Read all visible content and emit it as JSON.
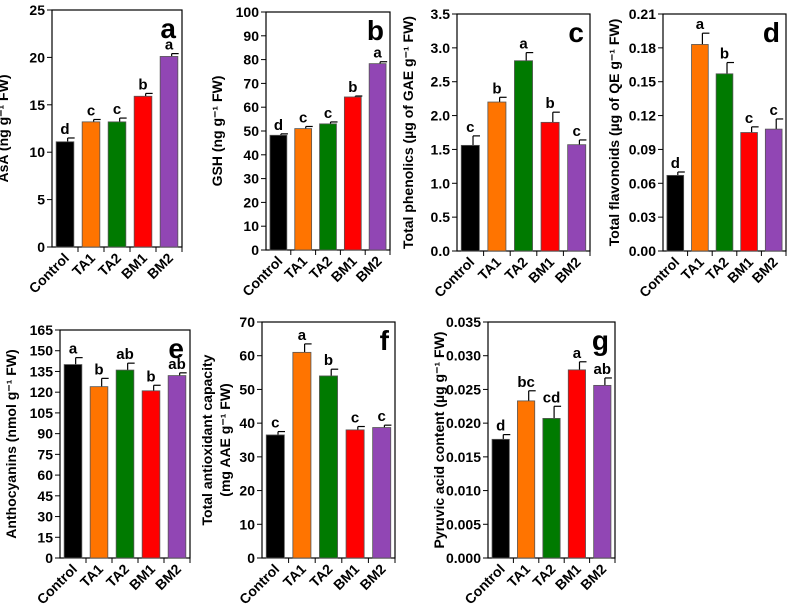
{
  "colors": {
    "Control": "#000000",
    "TA1": "#ff7400",
    "TA2": "#007a00",
    "BM1": "#ff0000",
    "BM2": "#9146b4"
  },
  "chart_data": [
    {
      "type": "bar",
      "panel": "a",
      "ylabel": "AsA (ng g⁻¹ FW)",
      "ylim": [
        0,
        25
      ],
      "yticks": [
        "0",
        "5",
        "10",
        "15",
        "20",
        "25"
      ],
      "categories": [
        "Control",
        "TA1",
        "TA2",
        "BM1",
        "BM2"
      ],
      "values": [
        11.1,
        13.2,
        13.2,
        15.9,
        20.1
      ],
      "errors": [
        0.4,
        0.25,
        0.4,
        0.3,
        0.3
      ],
      "letters": [
        "d",
        "c",
        "c",
        "b",
        "a"
      ]
    },
    {
      "type": "bar",
      "panel": "b",
      "ylabel": "GSH (ng g⁻¹ FW)",
      "ylim": [
        0,
        100
      ],
      "yticks": [
        "0",
        "10",
        "20",
        "30",
        "40",
        "50",
        "60",
        "70",
        "80",
        "90",
        "100"
      ],
      "categories": [
        "Control",
        "TA1",
        "TA2",
        "BM1",
        "BM2"
      ],
      "values": [
        48.2,
        51.0,
        53.0,
        64.3,
        78.3
      ],
      "errors": [
        0.6,
        0.9,
        0.8,
        0.4,
        0.8
      ],
      "letters": [
        "d",
        "c",
        "c",
        "b",
        "a"
      ]
    },
    {
      "type": "bar",
      "panel": "c",
      "ylabel": "Total phenolics (µg of GAE g⁻¹ FW)",
      "ylim": [
        0,
        3.5
      ],
      "yticks": [
        "0.0",
        "0.5",
        "1.0",
        "1.5",
        "2.0",
        "2.5",
        "3.0",
        "3.5"
      ],
      "categories": [
        "Control",
        "TA1",
        "TA2",
        "BM1",
        "BM2"
      ],
      "values": [
        1.56,
        2.2,
        2.81,
        1.9,
        1.57
      ],
      "errors": [
        0.14,
        0.07,
        0.12,
        0.15,
        0.07
      ],
      "letters": [
        "c",
        "b",
        "a",
        "b",
        "c"
      ]
    },
    {
      "type": "bar",
      "panel": "d",
      "ylabel": "Total flavonoids (µg of QE g⁻¹ FW)",
      "ylim": [
        0,
        0.21
      ],
      "yticks": [
        "0.00",
        "0.03",
        "0.06",
        "0.09",
        "0.12",
        "0.15",
        "0.18",
        "0.21"
      ],
      "categories": [
        "Control",
        "TA1",
        "TA2",
        "BM1",
        "BM2"
      ],
      "values": [
        0.067,
        0.183,
        0.157,
        0.105,
        0.108
      ],
      "errors": [
        0.003,
        0.01,
        0.01,
        0.005,
        0.009
      ],
      "letters": [
        "d",
        "a",
        "b",
        "c",
        "c"
      ]
    },
    {
      "type": "bar",
      "panel": "e",
      "ylabel": "Anthocyanins (nmol g⁻¹ FW)",
      "ylim": [
        0,
        165
      ],
      "yticks": [
        "0",
        "15",
        "30",
        "45",
        "60",
        "75",
        "90",
        "105",
        "120",
        "135",
        "150",
        "165"
      ],
      "categories": [
        "Control",
        "TA1",
        "TA2",
        "BM1",
        "BM2"
      ],
      "values": [
        140,
        124,
        136,
        121,
        132
      ],
      "errors": [
        5,
        6,
        5,
        4,
        2
      ],
      "letters": [
        "a",
        "b",
        "ab",
        "b",
        "ab"
      ]
    },
    {
      "type": "bar",
      "panel": "f",
      "ylabel": "Total antioxidant capacity",
      "ylabel2": "(mg AAE g⁻¹ FW)",
      "ylim": [
        0,
        70
      ],
      "yticks": [
        "0",
        "10",
        "20",
        "30",
        "40",
        "50",
        "60",
        "70"
      ],
      "categories": [
        "Control",
        "TA1",
        "TA2",
        "BM1",
        "BM2"
      ],
      "values": [
        36.5,
        61,
        54,
        38,
        38.7
      ],
      "errors": [
        1,
        2.5,
        2,
        1,
        0.7
      ],
      "letters": [
        "c",
        "a",
        "b",
        "c",
        "c"
      ]
    },
    {
      "type": "bar",
      "panel": "g",
      "ylabel": "Pyruvic acid content (µg g⁻¹ FW)",
      "ylim": [
        0,
        0.035
      ],
      "yticks": [
        "0.000",
        "0.005",
        "0.010",
        "0.015",
        "0.020",
        "0.025",
        "0.030",
        "0.035"
      ],
      "categories": [
        "Control",
        "TA1",
        "TA2",
        "BM1",
        "BM2"
      ],
      "values": [
        0.0176,
        0.0233,
        0.0207,
        0.0279,
        0.0256
      ],
      "errors": [
        0.0007,
        0.0015,
        0.0018,
        0.0012,
        0.0011
      ],
      "letters": [
        "d",
        "bc",
        "cd",
        "a",
        "ab"
      ]
    }
  ]
}
